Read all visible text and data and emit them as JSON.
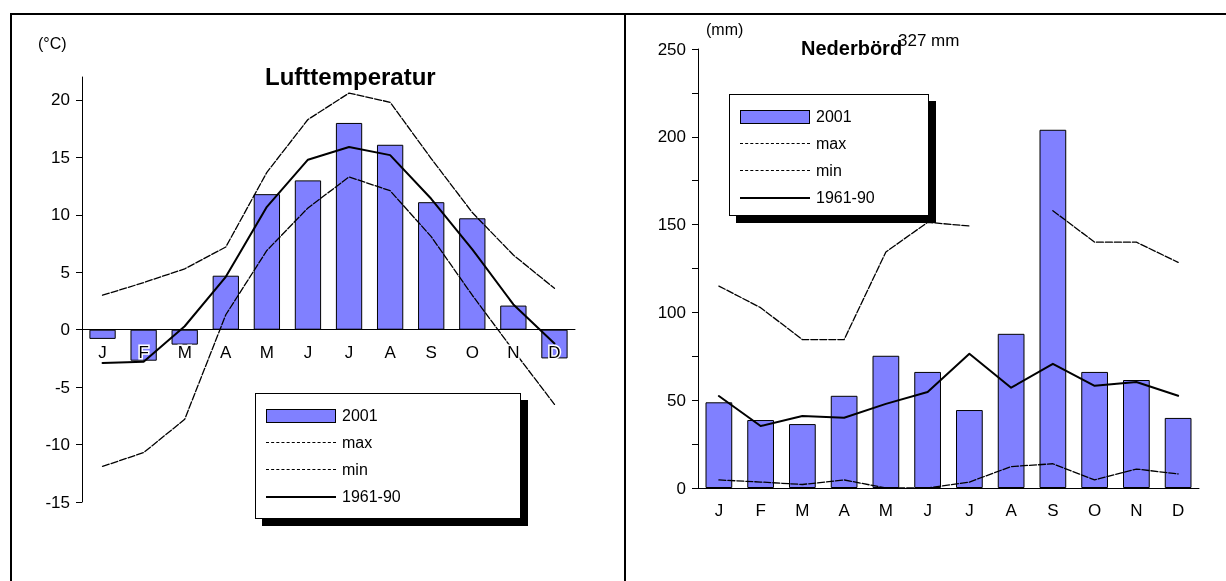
{
  "chart_data": [
    {
      "type": "bar",
      "title": "Lufttemperatur",
      "ylabel": "(°C)",
      "categories": [
        "J",
        "F",
        "M",
        "A",
        "M",
        "J",
        "J",
        "A",
        "S",
        "O",
        "N",
        "D"
      ],
      "series": [
        {
          "name": "2001",
          "color": "#8080ff",
          "values": [
            -0.8,
            -2.7,
            -1.3,
            4.7,
            11.8,
            13.0,
            18.0,
            16.1,
            11.1,
            9.7,
            2.1,
            -2.5
          ]
        },
        {
          "name": "max",
          "type": "line",
          "color": "#000000",
          "line_style": "dashed",
          "values": [
            3.0,
            4.1,
            5.3,
            7.2,
            13.7,
            18.3,
            20.6,
            19.8,
            14.9,
            10.2,
            6.5,
            3.6
          ]
        },
        {
          "name": "min",
          "type": "line",
          "color": "#000000",
          "line_style": "dashed",
          "values": [
            -11.9,
            -10.7,
            -7.8,
            1.3,
            6.9,
            10.6,
            13.3,
            12.1,
            8.1,
            3.0,
            -1.8,
            -6.5
          ]
        },
        {
          "name": "1961-90",
          "type": "line",
          "color": "#000000",
          "line_style": "solid",
          "values": [
            -2.9,
            -2.8,
            0.3,
            4.6,
            10.7,
            14.8,
            15.9,
            15.2,
            11.4,
            7.0,
            2.2,
            -1.2
          ]
        }
      ],
      "ylim": [
        -15,
        22
      ],
      "yticks": [
        -15,
        -10,
        -5,
        0,
        5,
        10,
        15,
        20
      ],
      "grid": false,
      "legend": "bottom",
      "marker": "none"
    },
    {
      "type": "bar",
      "title": "Nederbörd",
      "ylabel": "(mm)",
      "categories": [
        "J",
        "F",
        "M",
        "A",
        "M",
        "J",
        "J",
        "A",
        "S",
        "O",
        "N",
        "D"
      ],
      "series": [
        {
          "name": "2001",
          "color": "#8080ff",
          "values": [
            48.8,
            38.7,
            36.4,
            52.5,
            75.3,
            66.1,
            44.4,
            87.8,
            204,
            66.1,
            61.5,
            39.9
          ]
        },
        {
          "name": "max",
          "type": "line",
          "color": "#000000",
          "line_style": "dashed",
          "values": [
            115,
            102.7,
            84.5,
            84.5,
            134.4,
            151.3,
            149.2,
            null,
            157.9,
            140,
            140,
            128.5
          ]
        },
        {
          "name": "min",
          "type": "line",
          "color": "#000000",
          "line_style": "dashed",
          "values": [
            4.6,
            3.4,
            2.0,
            4.6,
            0,
            0,
            3.4,
            12.2,
            13.8,
            4.6,
            10.8,
            8.0
          ]
        },
        {
          "name": "1961-90",
          "type": "line",
          "color": "#000000",
          "line_style": "solid",
          "values": [
            52.4,
            35.3,
            41,
            40,
            47.9,
            54.7,
            76.4,
            57.1,
            70.7,
            58.2,
            60.4,
            52.5
          ]
        }
      ],
      "annotations": [
        "327 mm"
      ],
      "ylim": [
        0,
        250
      ],
      "yticks": [
        0,
        {
          "value": 25,
          "label": null
        },
        50,
        {
          "value": 75,
          "label": null
        },
        100,
        {
          "value": 125,
          "label": null
        },
        150,
        {
          "value": 175,
          "label": null
        },
        200,
        {
          "value": 225,
          "label": null
        },
        250
      ],
      "grid": false,
      "legend": "top left",
      "marker": "none"
    }
  ]
}
